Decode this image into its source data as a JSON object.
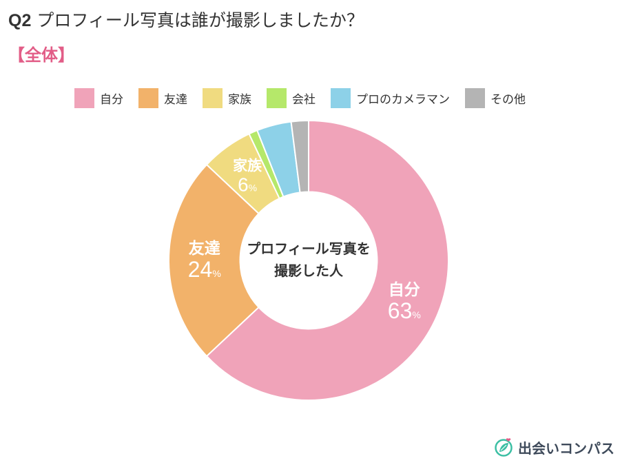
{
  "header": {
    "question_no": "Q2",
    "question_text": "プロフィール写真は誰が撮影しましたか？",
    "subset_label": "【全体】"
  },
  "chart_data": {
    "type": "pie",
    "categories": [
      "自分",
      "友達",
      "家族",
      "会社",
      "プロのカメラマン",
      "その他"
    ],
    "values": [
      63,
      24,
      6,
      1,
      4,
      2
    ],
    "value_labels": [
      "63",
      "24",
      "6",
      "",
      "",
      ""
    ],
    "unit": "%",
    "colors": [
      "#f0a3b9",
      "#f2b26a",
      "#f0db80",
      "#b5e86a",
      "#8dd1e8",
      "#b4b4b4"
    ],
    "center_label": [
      "プロフィール写真を",
      "撮影した人"
    ],
    "legend_position": "top",
    "inner_radius_ratio": 0.49
  },
  "branding": {
    "name": "出会いコンパス",
    "logo_icon": "compass-leaf-icon"
  }
}
